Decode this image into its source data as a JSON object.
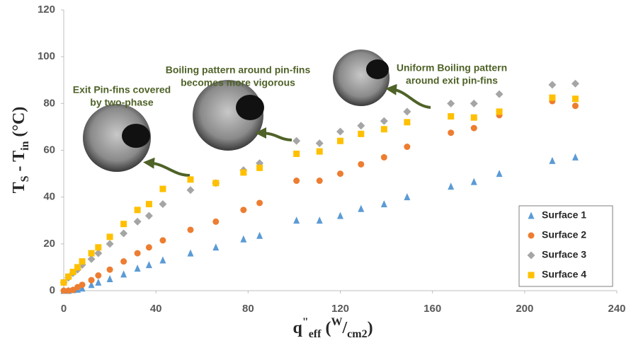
{
  "chart_data": {
    "type": "scatter",
    "ylabel_parts": [
      {
        "text": "T",
        "style": "normal"
      },
      {
        "text": "S",
        "style": "sub"
      },
      {
        "text": " - T",
        "style": "normal"
      },
      {
        "text": "in",
        "style": "sub"
      },
      {
        "text": "  (°C)",
        "style": "normal"
      }
    ],
    "xlabel_parts": [
      {
        "text": "q",
        "style": "normal"
      },
      {
        "text": "\"",
        "style": "sup"
      },
      {
        "text": "eff",
        "style": "sub"
      },
      {
        "text": " (",
        "style": "normal"
      },
      {
        "text": "W",
        "style": "sup"
      },
      {
        "text": "/",
        "style": "normal"
      },
      {
        "text": "cm",
        "style": "sub"
      },
      {
        "text": "2",
        "style": "sub"
      },
      {
        "text": ")",
        "style": "normal"
      }
    ],
    "x": [
      0,
      2,
      4,
      6,
      8,
      12,
      15,
      20,
      26,
      32,
      37,
      43,
      55,
      66,
      78,
      85,
      101,
      111,
      120,
      129,
      139,
      149,
      168,
      178,
      189,
      212,
      222
    ],
    "xlim": [
      0,
      240
    ],
    "xticks": [
      0,
      40,
      80,
      120,
      160,
      200,
      240
    ],
    "ylim": [
      0,
      120
    ],
    "yticks": [
      0,
      20,
      40,
      60,
      80,
      100,
      120
    ],
    "legend": "bottom-right",
    "series": [
      {
        "name": "Surface 1",
        "color": "#5b9bd5",
        "marker": "triangle",
        "values": [
          0,
          0,
          0.3,
          0.5,
          1,
          2.5,
          3.5,
          5,
          7,
          9.5,
          11,
          13,
          16,
          18.5,
          22,
          23.5,
          30,
          30,
          32,
          35,
          37,
          40,
          44.5,
          46.5,
          50,
          55.5,
          57
        ]
      },
      {
        "name": "Surface 2",
        "color": "#ed7d31",
        "marker": "circle",
        "values": [
          0,
          0,
          0.3,
          1.5,
          2.5,
          4.5,
          6.5,
          9,
          12.5,
          16,
          18.5,
          21.5,
          26,
          29.5,
          34.5,
          37.5,
          47,
          47,
          50,
          54,
          57,
          61.5,
          67.5,
          69.5,
          75,
          81,
          79
        ]
      },
      {
        "name": "Surface 3",
        "color": "#a5a5a5",
        "marker": "diamond",
        "values": [
          3.5,
          5.5,
          7.5,
          9,
          11,
          13.5,
          16,
          20,
          24.5,
          29.5,
          32,
          37,
          43,
          46,
          51.5,
          54.5,
          64,
          63,
          68,
          70.5,
          72.5,
          76.5,
          80,
          80,
          84,
          88,
          88.5
        ]
      },
      {
        "name": "Surface 4",
        "color": "#ffc000",
        "marker": "square",
        "values": [
          3.5,
          6,
          8,
          10,
          12.5,
          16,
          18.5,
          23,
          28.5,
          34.5,
          37,
          43.5,
          47.5,
          46,
          50.5,
          52.5,
          58.5,
          59.5,
          64,
          67,
          69,
          72,
          74.5,
          74,
          76.5,
          82.5,
          82
        ]
      }
    ],
    "annotations": [
      [
        "Exit Pin-fins covered",
        "by two-phase"
      ],
      [
        "Boiling pattern around pin-fins",
        "becomes more vigorous"
      ],
      [
        "Uniform Boiling pattern",
        "around exit pin-fins"
      ]
    ]
  }
}
